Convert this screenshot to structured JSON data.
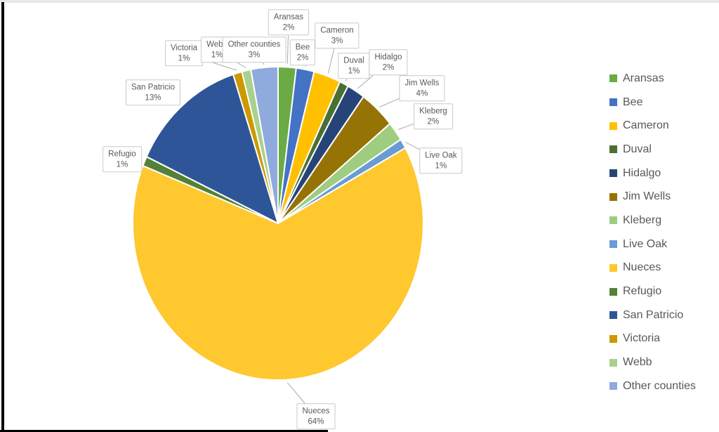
{
  "chart_data": {
    "type": "pie",
    "title": "",
    "legend_position": "right",
    "direction": "clockwise",
    "start_angle_deg": 0,
    "value_unit": "%",
    "data_labels": "category name and percent shown in white callout boxes with gray leader lines",
    "slices": [
      {
        "label": "Aransas",
        "value": 2,
        "color": "#6AAB45"
      },
      {
        "label": "Bee",
        "value": 2,
        "color": "#4472C4"
      },
      {
        "label": "Cameron",
        "value": 3,
        "color": "#FFC000"
      },
      {
        "label": "Duval",
        "value": 1,
        "color": "#497031"
      },
      {
        "label": "Hidalgo",
        "value": 2,
        "color": "#264478"
      },
      {
        "label": "Jim Wells",
        "value": 4,
        "color": "#957305"
      },
      {
        "label": "Kleberg",
        "value": 2,
        "color": "#9ECD80"
      },
      {
        "label": "Live Oak",
        "value": 1,
        "color": "#699BD5"
      },
      {
        "label": "Nueces",
        "value": 64,
        "color": "#FEC82E"
      },
      {
        "label": "Refugio",
        "value": 1,
        "color": "#538135"
      },
      {
        "label": "San Patricio",
        "value": 13,
        "color": "#2E5597"
      },
      {
        "label": "Victoria",
        "value": 1,
        "color": "#CC9900"
      },
      {
        "label": "Webb",
        "value": 1,
        "color": "#A9D18E"
      },
      {
        "label": "Other counties",
        "value": 3,
        "color": "#8FAADC"
      }
    ],
    "legend_entries": [
      "Aransas",
      "Bee",
      "Cameron",
      "Duval",
      "Hidalgo",
      "Jim Wells",
      "Kleberg",
      "Live Oak",
      "Nueces",
      "Refugio",
      "San Patricio",
      "Victoria",
      "Webb",
      "Other counties"
    ],
    "colors": {
      "label_text": "#595959",
      "legend_text": "#595959",
      "leader_line": "#ababab",
      "callout_border": "#c9c9c9",
      "slice_border": "#ffffff",
      "background": "#ffffff",
      "screen_edge": "#000000",
      "top_strip": "#e8e8e8"
    }
  }
}
